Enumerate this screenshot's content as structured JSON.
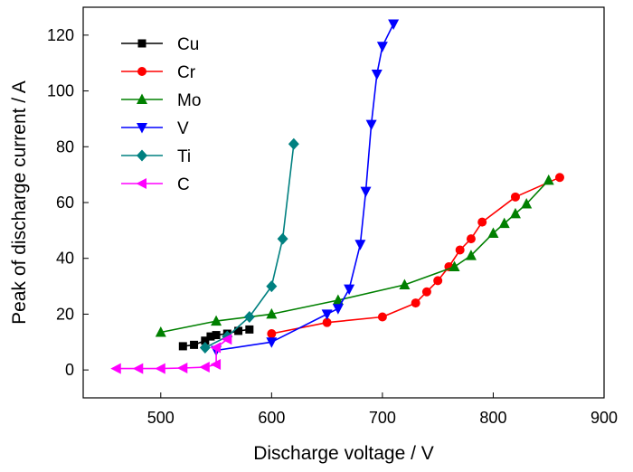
{
  "chart_data": {
    "type": "line",
    "xlabel": "Discharge voltage / V",
    "ylabel": "Peak of discharge current / A",
    "xlim": [
      430,
      900
    ],
    "ylim": [
      -10,
      130
    ],
    "xticks": [
      500,
      600,
      700,
      800,
      900
    ],
    "yticks": [
      0,
      20,
      40,
      60,
      80,
      100,
      120
    ],
    "legend_position": "top-left",
    "series": [
      {
        "name": "Cu",
        "color": "#000000",
        "marker": "square",
        "x": [
          520,
          530,
          540,
          545,
          550,
          560,
          570,
          580
        ],
        "y": [
          8.5,
          9,
          10.5,
          12,
          12.5,
          13,
          14,
          14.5
        ]
      },
      {
        "name": "Cr",
        "color": "#ff0000",
        "marker": "circle",
        "x": [
          600,
          650,
          700,
          730,
          740,
          750,
          760,
          770,
          780,
          790,
          820,
          860
        ],
        "y": [
          13,
          17,
          19,
          24,
          28,
          32,
          37,
          43,
          47,
          53,
          62,
          69
        ]
      },
      {
        "name": "Mo",
        "color": "#008000",
        "marker": "triangle-up",
        "x": [
          500,
          550,
          600,
          660,
          720,
          765,
          780,
          800,
          810,
          820,
          830,
          850
        ],
        "y": [
          13.5,
          17.5,
          20,
          25,
          30.5,
          37,
          41,
          49,
          52.5,
          56,
          59.5,
          68
        ]
      },
      {
        "name": "V",
        "color": "#0000ff",
        "marker": "triangle-down",
        "x": [
          550,
          600,
          650,
          660,
          670,
          680,
          685,
          690,
          695,
          700,
          710
        ],
        "y": [
          7,
          10,
          20,
          22,
          29,
          45,
          64,
          88,
          106,
          116,
          124
        ]
      },
      {
        "name": "Ti",
        "color": "#008080",
        "marker": "diamond",
        "x": [
          540,
          560,
          580,
          600,
          610,
          620
        ],
        "y": [
          8,
          12,
          19,
          30,
          47,
          81
        ]
      },
      {
        "name": "C",
        "color": "#ff00ff",
        "marker": "triangle-left",
        "x": [
          460,
          480,
          500,
          520,
          540,
          550,
          550,
          560
        ],
        "y": [
          0.5,
          0.5,
          0.5,
          0.7,
          1.0,
          2.0,
          8,
          11
        ]
      }
    ]
  }
}
